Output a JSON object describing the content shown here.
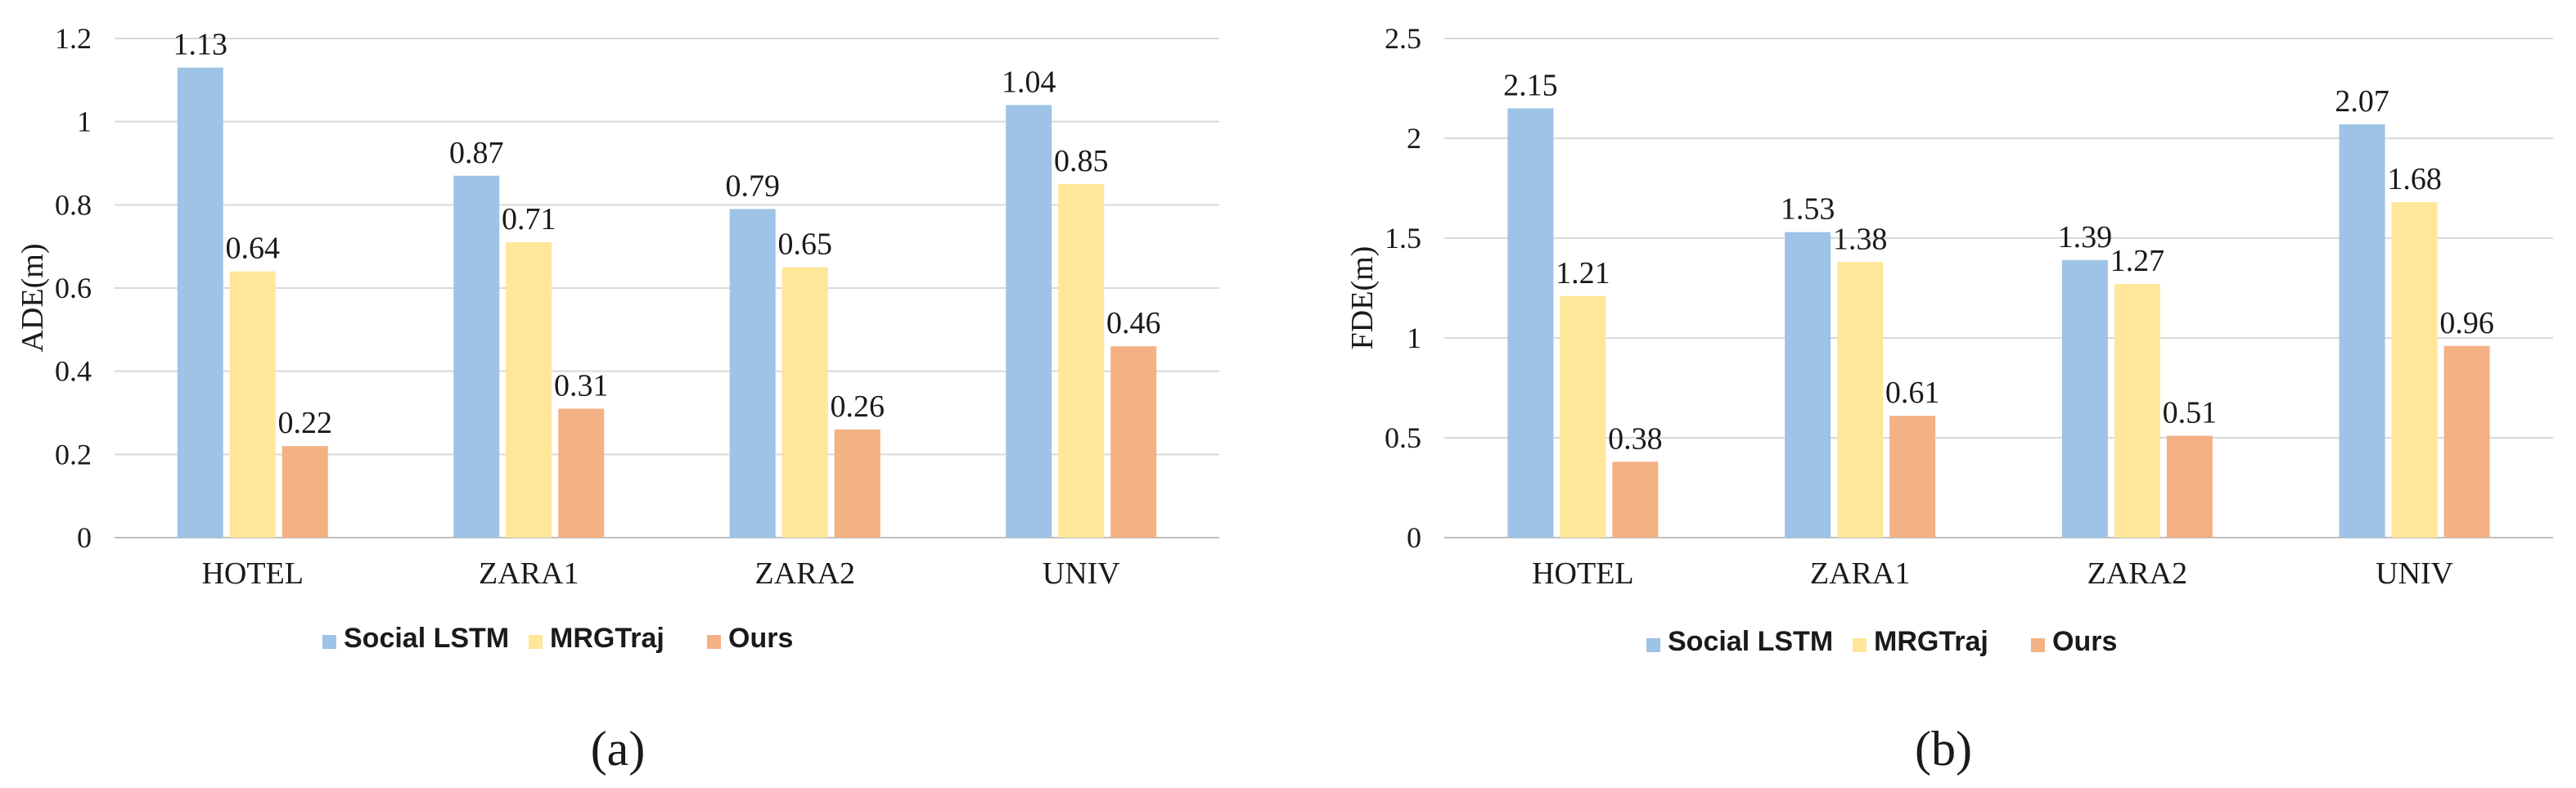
{
  "chart_data": [
    {
      "type": "bar",
      "panel_label": "(a)",
      "ylabel": "ADE(m)",
      "categories": [
        "HOTEL",
        "ZARA1",
        "ZARA2",
        "UNIV"
      ],
      "series": [
        {
          "name": "Social LSTM",
          "values": [
            1.13,
            0.87,
            0.79,
            1.04
          ],
          "labels": [
            "1.13",
            "0.87",
            "0.79",
            "1.04"
          ],
          "color": "#9dc3e6"
        },
        {
          "name": "MRGTraj",
          "values": [
            0.64,
            0.71,
            0.65,
            0.85
          ],
          "labels": [
            "0.64",
            "0.71",
            "0.65",
            "0.85"
          ],
          "color": "#ffe699"
        },
        {
          "name": "Ours",
          "values": [
            0.22,
            0.31,
            0.26,
            0.46
          ],
          "labels": [
            "0.22",
            "0.31",
            "0.26",
            "0.46"
          ],
          "color": "#f4b183"
        }
      ],
      "ylim": [
        0,
        1.2
      ],
      "yticks": [
        0,
        0.2,
        0.4,
        0.6,
        0.8,
        1.0,
        1.2
      ],
      "ytick_labels": [
        "0",
        "0.2",
        "0.4",
        "0.6",
        "0.8",
        "1",
        "1.2"
      ],
      "grid": true,
      "legend_position": "bottom"
    },
    {
      "type": "bar",
      "panel_label": "(b)",
      "ylabel": "FDE(m)",
      "categories": [
        "HOTEL",
        "ZARA1",
        "ZARA2",
        "UNIV"
      ],
      "series": [
        {
          "name": "Social LSTM",
          "values": [
            2.15,
            1.53,
            1.39,
            2.07
          ],
          "labels": [
            "2.15",
            "1.53",
            "1.39",
            "2.07"
          ],
          "color": "#9dc3e6"
        },
        {
          "name": "MRGTraj",
          "values": [
            1.21,
            1.38,
            1.27,
            1.68
          ],
          "labels": [
            "1.21",
            "1.38",
            "1.27",
            "1.68"
          ],
          "color": "#ffe699"
        },
        {
          "name": "Ours",
          "values": [
            0.38,
            0.61,
            0.51,
            0.96
          ],
          "labels": [
            "0.38",
            "0.61",
            "0.51",
            "0.96"
          ],
          "color": "#f4b183"
        }
      ],
      "ylim": [
        0,
        2.5
      ],
      "yticks": [
        0,
        0.5,
        1.0,
        1.5,
        2.0,
        2.5
      ],
      "ytick_labels": [
        "0",
        "0.5",
        "1",
        "1.5",
        "2",
        "2.5"
      ],
      "grid": true,
      "legend_position": "bottom"
    }
  ]
}
